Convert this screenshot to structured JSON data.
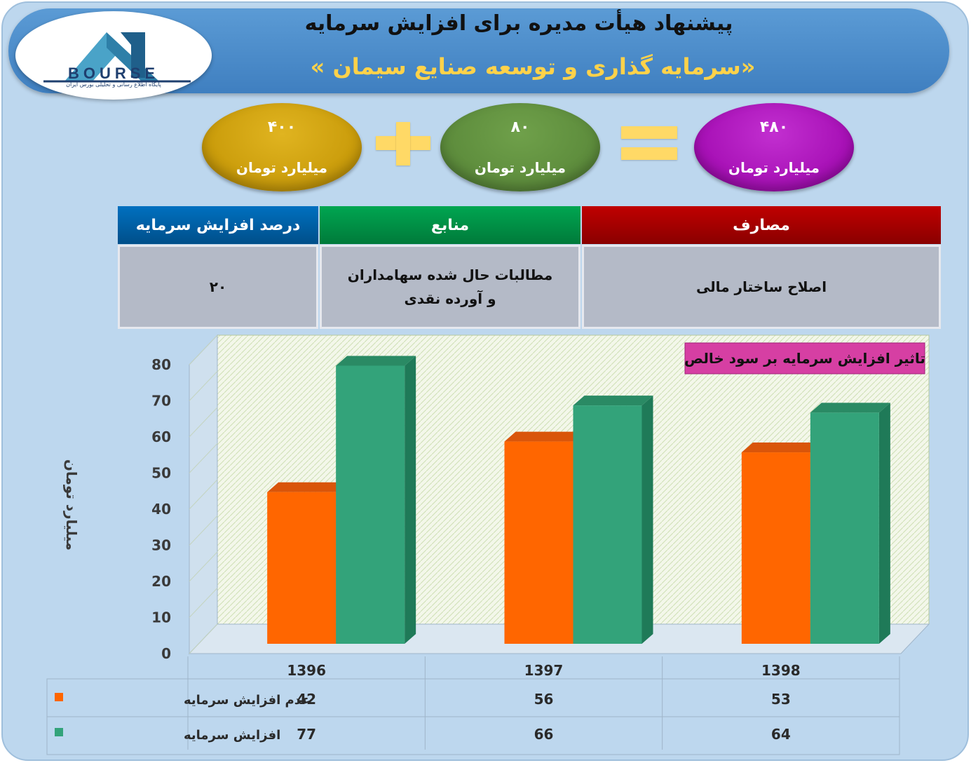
{
  "header": {
    "logo": {
      "word": "BOURSE",
      "tagline": "پایگاه اطلاع رسانی و تحلیلی بورس ایران"
    },
    "title": "پیشنهاد هیأت مدیره برای افزایش سرمایه",
    "company": "«سرمایه گذاری و توسعه صنایع سیمان »"
  },
  "equation": {
    "total": {
      "value": "۴۸۰",
      "unit": "میلیارد تومان",
      "color": "#9900a8"
    },
    "increase": {
      "value": "۸۰",
      "unit": "میلیارد تومان",
      "color": "#548235"
    },
    "current": {
      "value": "۴۰۰",
      "unit": "میلیارد تومان",
      "color": "#bf9000"
    },
    "operator_color": "#ffd966"
  },
  "info_table": {
    "headers": {
      "uses": "مصارف",
      "sources": "منابع",
      "percent": "درصد افزایش سرمایه"
    },
    "values": {
      "uses": "اصلاح ساختار مالی",
      "sources": "مطالبات حال شده سهامداران و آورده نقدی",
      "percent": "۲۰"
    },
    "colors": {
      "uses": "#c00000",
      "sources": "#00a651",
      "percent": "#0070c0"
    }
  },
  "chart_data": {
    "type": "bar",
    "title": "تاثیر افزایش سرمایه بر سود خالص",
    "ylabel": "میلیارد تومان",
    "xlabel": "",
    "ylim": [
      0,
      80
    ],
    "yticks": [
      "0",
      "10",
      "20",
      "30",
      "40",
      "50",
      "60",
      "70",
      "80"
    ],
    "categories": [
      "1396",
      "1397",
      "1398"
    ],
    "series": [
      {
        "name": "عدم افزایش سرمایه",
        "values": [
          42,
          56,
          53
        ],
        "color": "#ff6600",
        "value_labels": [
          "42",
          "56",
          "53"
        ]
      },
      {
        "name": "افزایش سرمایه",
        "values": [
          77,
          66,
          64
        ],
        "color": "#33a37a",
        "value_labels": [
          "77",
          "66",
          "64"
        ]
      }
    ],
    "grid": true,
    "legend": "data-table"
  }
}
